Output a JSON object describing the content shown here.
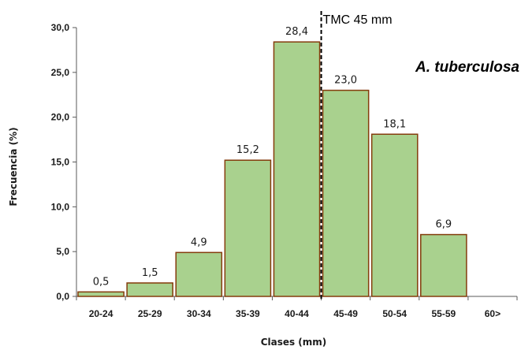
{
  "chart_data": {
    "type": "bar",
    "categories": [
      "20-24",
      "25-29",
      "30-34",
      "35-39",
      "40-44",
      "45-49",
      "50-54",
      "55-59",
      "60>"
    ],
    "values": [
      0.5,
      1.5,
      4.9,
      15.2,
      28.4,
      23.0,
      18.1,
      6.9,
      null
    ],
    "value_labels": [
      "0,5",
      "1,5",
      "4,9",
      "15,2",
      "28,4",
      "23,0",
      "18,1",
      "6,9",
      ""
    ],
    "xlabel": "Clases (mm)",
    "ylabel": "Frecuencia (%)",
    "ylim": [
      0,
      30
    ],
    "yticks": [
      0,
      5,
      10,
      15,
      20,
      25,
      30
    ],
    "ytick_labels": [
      "0,0",
      "5,0",
      "10,0",
      "15,0",
      "20,0",
      "25,0",
      "30,0"
    ],
    "annotations": {
      "species": "A. tuberculosa",
      "reference_line_label": "TMC 45 mm"
    },
    "grid": false,
    "legend": "none",
    "colors": {
      "bar_fill": "#a9d18e",
      "bar_stroke": "#843c0c",
      "axis": "#595959",
      "reference_line": "#000000"
    }
  }
}
